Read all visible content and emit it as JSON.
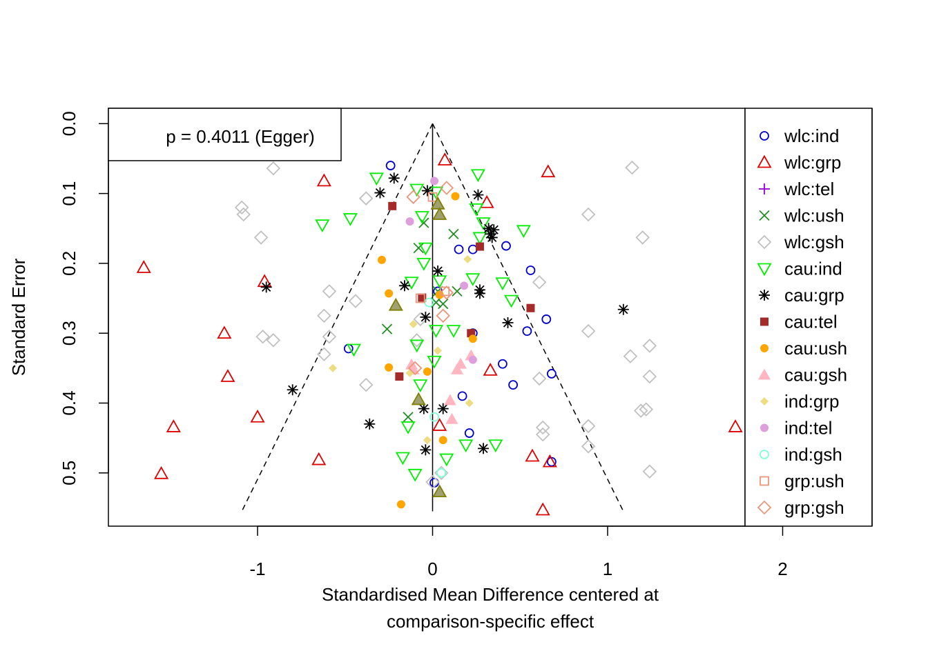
{
  "chart_data": {
    "type": "scatter",
    "title": "",
    "xlabel": [
      "Standardised Mean Difference centered at",
      "comparison-specific effect"
    ],
    "ylabel": "Standard Error",
    "xlim": [
      -1.85,
      2.5
    ],
    "ylim": [
      0.575,
      -0.022
    ],
    "y_reversed": true,
    "xticks": [
      -1,
      0,
      1,
      2
    ],
    "xtick_labels": [
      "-1",
      "0",
      "1",
      "2"
    ],
    "yticks": [
      0.0,
      0.1,
      0.2,
      0.3,
      0.4,
      0.5
    ],
    "ytick_labels": [
      "0.0",
      "0.1",
      "0.2",
      "0.3",
      "0.4",
      "0.5"
    ],
    "grid": false,
    "legend_position": "right",
    "annotation": "p = 0.4011 (Egger)",
    "funnel": {
      "apex": [
        0,
        0
      ],
      "left_base": [
        -1.09,
        0.555
      ],
      "right_base": [
        1.09,
        0.555
      ],
      "line_x0": 0,
      "line_ybottom": 0.555
    },
    "series": [
      {
        "name": "wlc:ind",
        "shape": "circle",
        "color": "#0000CD",
        "points": [
          [
            -0.24,
            0.06
          ],
          [
            0.15,
            0.18
          ],
          [
            0.23,
            0.18
          ],
          [
            0.42,
            0.175
          ],
          [
            0.56,
            0.21
          ],
          [
            0.54,
            0.297
          ],
          [
            0.65,
            0.28
          ],
          [
            0.23,
            0.3
          ],
          [
            -0.48,
            0.322
          ],
          [
            0.4,
            0.344
          ],
          [
            0.68,
            0.358
          ],
          [
            0.46,
            0.374
          ],
          [
            0.17,
            0.39
          ],
          [
            0.21,
            0.443
          ],
          [
            0.68,
            0.484
          ],
          [
            0.01,
            0.514
          ],
          [
            0.03,
            0.24
          ]
        ]
      },
      {
        "name": "wlc:grp",
        "shape": "triangle-up",
        "color": "#DD0000",
        "points": [
          [
            0.07,
            0.052
          ],
          [
            0.66,
            0.069
          ],
          [
            -0.62,
            0.082
          ],
          [
            0.31,
            0.113
          ],
          [
            -1.65,
            0.206
          ],
          [
            -0.96,
            0.226
          ],
          [
            -1.19,
            0.3
          ],
          [
            -1.17,
            0.362
          ],
          [
            0.33,
            0.353
          ],
          [
            -1.0,
            0.42
          ],
          [
            -1.48,
            0.434
          ],
          [
            0.04,
            0.432
          ],
          [
            -0.65,
            0.481
          ],
          [
            0.57,
            0.476
          ],
          [
            0.67,
            0.484
          ],
          [
            -1.55,
            0.501
          ],
          [
            0.63,
            0.553
          ],
          [
            1.73,
            0.434
          ]
        ]
      },
      {
        "name": "wlc:tel",
        "shape": "plus",
        "color": "#9400D3",
        "points": []
      },
      {
        "name": "wlc:ush",
        "shape": "x",
        "color": "#228B22",
        "points": [
          [
            0.12,
            0.158
          ],
          [
            -0.08,
            0.178
          ],
          [
            -0.05,
            0.142
          ],
          [
            0.03,
            0.24
          ],
          [
            0.14,
            0.24
          ],
          [
            0.06,
            0.258
          ],
          [
            0.02,
            0.256
          ],
          [
            -0.26,
            0.294
          ],
          [
            -0.14,
            0.42
          ]
        ]
      },
      {
        "name": "wlc:gsh",
        "shape": "diamond",
        "color": "#C0C0C0",
        "points": [
          [
            -0.91,
            0.064
          ],
          [
            1.14,
            0.063
          ],
          [
            -1.09,
            0.12
          ],
          [
            -1.08,
            0.13
          ],
          [
            -0.38,
            0.107
          ],
          [
            0.89,
            0.13
          ],
          [
            -0.98,
            0.163
          ],
          [
            1.2,
            0.163
          ],
          [
            -0.59,
            0.24
          ],
          [
            -0.44,
            0.254
          ],
          [
            0.61,
            0.227
          ],
          [
            -0.62,
            0.275
          ],
          [
            -0.59,
            0.305
          ],
          [
            -0.97,
            0.305
          ],
          [
            -0.91,
            0.31
          ],
          [
            0.89,
            0.297
          ],
          [
            -0.62,
            0.33
          ],
          [
            1.24,
            0.318
          ],
          [
            1.13,
            0.333
          ],
          [
            0.61,
            0.365
          ],
          [
            -0.38,
            0.374
          ],
          [
            1.24,
            0.362
          ],
          [
            1.19,
            0.411
          ],
          [
            1.22,
            0.409
          ],
          [
            0.63,
            0.435
          ],
          [
            0.89,
            0.433
          ],
          [
            0.63,
            0.445
          ],
          [
            0.89,
            0.462
          ],
          [
            1.24,
            0.498
          ],
          [
            -0.09,
            0.31
          ],
          [
            0.0,
            0.513
          ],
          [
            0.05,
            0.5
          ],
          [
            -0.07,
            0.28
          ]
        ]
      },
      {
        "name": "cau:ind",
        "shape": "triangle-down",
        "color": "#00EE00",
        "points": [
          [
            -0.32,
            0.078
          ],
          [
            0.26,
            0.073
          ],
          [
            -0.09,
            0.094
          ],
          [
            0.02,
            0.098
          ],
          [
            0.29,
            0.142
          ],
          [
            -0.63,
            0.145
          ],
          [
            -0.47,
            0.136
          ],
          [
            0.52,
            0.153
          ],
          [
            0.27,
            0.163
          ],
          [
            -0.06,
            0.133
          ],
          [
            -0.04,
            0.178
          ],
          [
            0.25,
            0.122
          ],
          [
            -0.05,
            0.2
          ],
          [
            0.04,
            0.225
          ],
          [
            0.23,
            0.222
          ],
          [
            0.4,
            0.228
          ],
          [
            0.45,
            0.253
          ],
          [
            -0.12,
            0.227
          ],
          [
            0.02,
            0.296
          ],
          [
            0.12,
            0.296
          ],
          [
            -0.09,
            0.317
          ],
          [
            -0.45,
            0.323
          ],
          [
            0.01,
            0.34
          ],
          [
            -0.07,
            0.374
          ],
          [
            -0.17,
            0.478
          ],
          [
            0.08,
            0.48
          ],
          [
            -0.1,
            0.502
          ],
          [
            0.19,
            0.46
          ],
          [
            0.36,
            0.46
          ],
          [
            -0.14,
            0.434
          ]
        ]
      },
      {
        "name": "cau:grp",
        "shape": "star",
        "color": "#000000",
        "points": [
          [
            -0.22,
            0.078
          ],
          [
            -0.3,
            0.099
          ],
          [
            -0.03,
            0.096
          ],
          [
            0.26,
            0.102
          ],
          [
            0.32,
            0.15
          ],
          [
            0.35,
            0.152
          ],
          [
            0.33,
            0.158
          ],
          [
            0.34,
            0.163
          ],
          [
            0.03,
            0.211
          ],
          [
            -0.16,
            0.232
          ],
          [
            0.27,
            0.238
          ],
          [
            0.27,
            0.243
          ],
          [
            -0.95,
            0.234
          ],
          [
            0.43,
            0.285
          ],
          [
            1.09,
            0.266
          ],
          [
            -0.04,
            0.277
          ],
          [
            -0.8,
            0.381
          ],
          [
            0.06,
            0.408
          ],
          [
            -0.05,
            0.408
          ],
          [
            -0.36,
            0.43
          ],
          [
            0.29,
            0.465
          ],
          [
            -0.04,
            0.467
          ]
        ]
      },
      {
        "name": "cau:tel",
        "shape": "square-filled",
        "color": "#A52A2A",
        "points": [
          [
            -0.23,
            0.118
          ],
          [
            0.27,
            0.176
          ],
          [
            0.56,
            0.264
          ],
          [
            -0.06,
            0.249
          ],
          [
            0.22,
            0.3
          ],
          [
            -0.19,
            0.362
          ]
        ]
      },
      {
        "name": "cau:ush",
        "shape": "circle-filled",
        "color": "#FFA500",
        "points": [
          [
            0.13,
            0.104
          ],
          [
            -0.29,
            0.195
          ],
          [
            -0.25,
            0.243
          ],
          [
            0.04,
            0.245
          ],
          [
            0.23,
            0.308
          ],
          [
            -0.25,
            0.349
          ],
          [
            -0.03,
            0.355
          ],
          [
            0.06,
            0.453
          ],
          [
            -0.18,
            0.545
          ]
        ]
      },
      {
        "name": "cau:gsh",
        "shape": "triangle-filled",
        "color": "#FFB6C1",
        "points": [
          [
            0.16,
            0.344
          ],
          [
            0.14,
            0.352
          ],
          [
            0.22,
            0.332
          ],
          [
            0.1,
            0.396
          ],
          [
            0.11,
            0.423
          ],
          [
            -0.12,
            0.345
          ],
          [
            -0.11,
            0.352
          ]
        ]
      },
      {
        "name": "ind:grp",
        "shape": "diamond-filled",
        "color": "#EEDC82",
        "points": [
          [
            0.2,
            0.194
          ],
          [
            -0.57,
            0.35
          ],
          [
            -0.11,
            0.287
          ],
          [
            0.21,
            0.4
          ],
          [
            -0.03,
            0.453
          ],
          [
            0.03,
            0.325
          ],
          [
            -0.13,
            0.357
          ]
        ]
      },
      {
        "name": "ind:tel",
        "shape": "circle-filled",
        "color": "#DDA0DD",
        "points": [
          [
            0.01,
            0.082
          ],
          [
            -0.13,
            0.14
          ],
          [
            0.18,
            0.232
          ],
          [
            0.23,
            0.338
          ]
        ]
      },
      {
        "name": "ind:gsh",
        "shape": "circle",
        "color": "#7FFFD4",
        "points": [
          [
            0.01,
            0.42
          ],
          [
            0.05,
            0.5
          ],
          [
            -0.02,
            0.256
          ]
        ]
      },
      {
        "name": "grp:ush",
        "shape": "square",
        "color": "#E9967A",
        "points": [
          [
            0.0,
            0.105
          ],
          [
            -0.07,
            0.25
          ],
          [
            0.07,
            0.24
          ]
        ]
      },
      {
        "name": "grp:gsh",
        "shape": "diamond",
        "color": "#E9967A",
        "points": [
          [
            0.08,
            0.092
          ],
          [
            -0.11,
            0.105
          ],
          [
            0.08,
            0.242
          ],
          [
            0.06,
            0.275
          ],
          [
            -0.1,
            0.35
          ]
        ]
      },
      {
        "name": "",
        "shape": "triangle-olive",
        "color": "#808000",
        "points": [
          [
            0.03,
            0.115
          ],
          [
            0.04,
            0.13
          ],
          [
            -0.21,
            0.26
          ],
          [
            -0.08,
            0.395
          ],
          [
            0.04,
            0.527
          ]
        ]
      }
    ]
  }
}
